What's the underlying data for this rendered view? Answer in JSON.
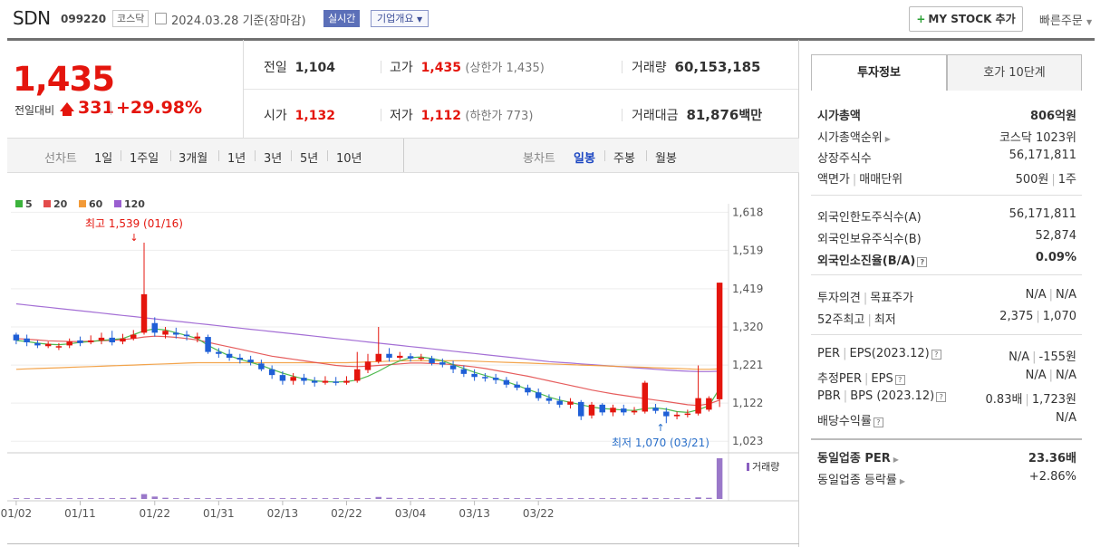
{
  "header": {
    "stock_name": "SDN",
    "stock_code": "099220",
    "market": "코스닥",
    "date": "2024.03.28",
    "basis": "기준(장마감)",
    "realtime_label": "실시간",
    "corp_overview_label": "기업개요",
    "my_stock_label": "MY STOCK 추가",
    "quick_order_label": "빠른주문"
  },
  "summary": {
    "price": "1,435",
    "change_label": "전일대비",
    "change_value": "331",
    "change_pct": "+29.98%",
    "prev_close_label": "전일",
    "prev_close": "1,104",
    "high_label": "고가",
    "high": "1,435",
    "upper_limit_label": "(상한가 1,435)",
    "volume_label": "거래량",
    "volume": "60,153,185",
    "open_label": "시가",
    "open": "1,132",
    "low_label": "저가",
    "low": "1,112",
    "lower_limit_label": "(하한가 773)",
    "trade_value_label": "거래대금",
    "trade_value": "81,876",
    "trade_value_unit": "백만"
  },
  "period_bar": {
    "line_chart_label": "선차트",
    "periods": [
      "1일",
      "1주일",
      "3개월",
      "1년",
      "3년",
      "5년",
      "10년"
    ],
    "candle_chart_label": "봉차트",
    "candle_types": [
      "일봉",
      "주봉",
      "월봉"
    ],
    "selected_candle": "일봉"
  },
  "legend": [
    {
      "label": "5",
      "color": "#3cb33c"
    },
    {
      "label": "20",
      "color": "#e34b4b"
    },
    {
      "label": "60",
      "color": "#f29a38"
    },
    {
      "label": "120",
      "color": "#9a5fd0"
    }
  ],
  "chart_annotations": {
    "high": "최고 1,539 (01/16)",
    "low": "최저 1,070 (03/21)",
    "volume_label": "거래량"
  },
  "chart_data": {
    "type": "candlestick",
    "y_ticks": [
      "1,618",
      "1,519",
      "1,419",
      "1,320",
      "1,221",
      "1,122",
      "1,023"
    ],
    "ylim": [
      1000,
      1640
    ],
    "x_tick_labels": [
      "01/02",
      "01/11",
      "01/22",
      "01/31",
      "02/13",
      "02/22",
      "03/04",
      "03/13",
      "03/22"
    ],
    "candles": [
      [
        1300,
        1285,
        1305,
        1275
      ],
      [
        1290,
        1280,
        1300,
        1270
      ],
      [
        1278,
        1272,
        1285,
        1265
      ],
      [
        1270,
        1276,
        1282,
        1265
      ],
      [
        1268,
        1270,
        1278,
        1260
      ],
      [
        1272,
        1282,
        1290,
        1265
      ],
      [
        1285,
        1278,
        1295,
        1270
      ],
      [
        1280,
        1285,
        1298,
        1275
      ],
      [
        1285,
        1292,
        1305,
        1275
      ],
      [
        1292,
        1280,
        1310,
        1272
      ],
      [
        1282,
        1290,
        1302,
        1275
      ],
      [
        1290,
        1300,
        1312,
        1285
      ],
      [
        1305,
        1405,
        1539,
        1300
      ],
      [
        1330,
        1305,
        1345,
        1295
      ],
      [
        1300,
        1310,
        1320,
        1290
      ],
      [
        1305,
        1300,
        1318,
        1290
      ],
      [
        1300,
        1296,
        1310,
        1285
      ],
      [
        1290,
        1295,
        1305,
        1280
      ],
      [
        1294,
        1255,
        1300,
        1250
      ],
      [
        1255,
        1250,
        1265,
        1240
      ],
      [
        1250,
        1240,
        1262,
        1232
      ],
      [
        1240,
        1235,
        1250,
        1225
      ],
      [
        1235,
        1228,
        1245,
        1220
      ],
      [
        1225,
        1210,
        1235,
        1205
      ],
      [
        1210,
        1195,
        1220,
        1185
      ],
      [
        1195,
        1180,
        1205,
        1170
      ],
      [
        1180,
        1190,
        1200,
        1170
      ],
      [
        1188,
        1180,
        1198,
        1170
      ],
      [
        1180,
        1175,
        1190,
        1165
      ],
      [
        1175,
        1180,
        1192,
        1170
      ],
      [
        1178,
        1175,
        1190,
        1168
      ],
      [
        1175,
        1180,
        1192,
        1170
      ],
      [
        1180,
        1210,
        1255,
        1175
      ],
      [
        1208,
        1230,
        1250,
        1200
      ],
      [
        1230,
        1250,
        1320,
        1225
      ],
      [
        1250,
        1240,
        1265,
        1230
      ],
      [
        1240,
        1245,
        1255,
        1235
      ],
      [
        1244,
        1238,
        1252,
        1230
      ],
      [
        1238,
        1240,
        1250,
        1232
      ],
      [
        1238,
        1226,
        1245,
        1220
      ],
      [
        1228,
        1222,
        1238,
        1215
      ],
      [
        1220,
        1210,
        1232,
        1200
      ],
      [
        1210,
        1198,
        1220,
        1190
      ],
      [
        1198,
        1190,
        1210,
        1180
      ],
      [
        1190,
        1188,
        1200,
        1178
      ],
      [
        1188,
        1182,
        1198,
        1172
      ],
      [
        1182,
        1170,
        1190,
        1162
      ],
      [
        1170,
        1162,
        1178,
        1155
      ],
      [
        1162,
        1150,
        1170,
        1142
      ],
      [
        1150,
        1135,
        1160,
        1128
      ],
      [
        1135,
        1128,
        1145,
        1120
      ],
      [
        1128,
        1118,
        1140,
        1110
      ],
      [
        1118,
        1126,
        1135,
        1108
      ],
      [
        1125,
        1088,
        1130,
        1078
      ],
      [
        1090,
        1118,
        1125,
        1082
      ],
      [
        1118,
        1098,
        1122,
        1090
      ],
      [
        1098,
        1110,
        1118,
        1088
      ],
      [
        1108,
        1098,
        1118,
        1090
      ],
      [
        1098,
        1102,
        1112,
        1092
      ],
      [
        1100,
        1175,
        1180,
        1095
      ],
      [
        1110,
        1102,
        1120,
        1095
      ],
      [
        1100,
        1088,
        1110,
        1070
      ],
      [
        1088,
        1092,
        1100,
        1080
      ],
      [
        1092,
        1095,
        1105,
        1085
      ],
      [
        1095,
        1135,
        1220,
        1090
      ],
      [
        1105,
        1135,
        1140,
        1100
      ],
      [
        1132,
        1435,
        1435,
        1112
      ]
    ],
    "ma": {
      "5": [
        1285,
        1282,
        1278,
        1275,
        1274,
        1276,
        1280,
        1282,
        1285,
        1287,
        1290,
        1300,
        1310,
        1315,
        1312,
        1305,
        1298,
        1290,
        1272,
        1258,
        1245,
        1236,
        1228,
        1220,
        1210,
        1200,
        1192,
        1185,
        1180,
        1178,
        1177,
        1178,
        1182,
        1192,
        1205,
        1220,
        1232,
        1240,
        1242,
        1238,
        1232,
        1222,
        1212,
        1202,
        1194,
        1186,
        1178,
        1168,
        1158,
        1148,
        1138,
        1130,
        1124,
        1118,
        1112,
        1108,
        1106,
        1104,
        1103,
        1108,
        1110,
        1106,
        1100,
        1098,
        1105,
        1115,
        1160
      ],
      "20": [
        1290,
        1288,
        1286,
        1284,
        1283,
        1282,
        1282,
        1283,
        1284,
        1285,
        1287,
        1290,
        1294,
        1296,
        1295,
        1293,
        1290,
        1286,
        1280,
        1274,
        1268,
        1262,
        1256,
        1250,
        1244,
        1240,
        1236,
        1232,
        1228,
        1224,
        1220,
        1218,
        1217,
        1218,
        1220,
        1222,
        1224,
        1226,
        1226,
        1225,
        1224,
        1222,
        1219,
        1216,
        1212,
        1207,
        1202,
        1197,
        1192,
        1186,
        1180,
        1174,
        1168,
        1162,
        1156,
        1151,
        1146,
        1142,
        1138,
        1134,
        1130,
        1126,
        1122,
        1118,
        1116,
        1120,
        1130
      ],
      "60": [
        1210,
        1211,
        1212,
        1213,
        1214,
        1215,
        1216,
        1217,
        1218,
        1219,
        1220,
        1221,
        1222,
        1223,
        1224,
        1225,
        1226,
        1227,
        1227,
        1227,
        1227,
        1227,
        1227,
        1227,
        1227,
        1227,
        1227,
        1227,
        1227,
        1227,
        1227,
        1227,
        1228,
        1229,
        1230,
        1231,
        1232,
        1232,
        1232,
        1232,
        1232,
        1232,
        1232,
        1231,
        1230,
        1229,
        1228,
        1227,
        1226,
        1225,
        1224,
        1223,
        1222,
        1221,
        1220,
        1219,
        1218,
        1217,
        1216,
        1215,
        1214,
        1213,
        1212,
        1211,
        1210,
        1210,
        1211
      ],
      "120": [
        1380,
        1377,
        1374,
        1371,
        1368,
        1365,
        1362,
        1359,
        1356,
        1353,
        1350,
        1347,
        1344,
        1341,
        1338,
        1335,
        1332,
        1329,
        1326,
        1323,
        1320,
        1317,
        1314,
        1311,
        1308,
        1305,
        1302,
        1299,
        1296,
        1293,
        1290,
        1287,
        1284,
        1281,
        1278,
        1275,
        1272,
        1269,
        1266,
        1263,
        1260,
        1257,
        1254,
        1251,
        1248,
        1245,
        1242,
        1239,
        1236,
        1233,
        1230,
        1228,
        1226,
        1224,
        1222,
        1220,
        1218,
        1216,
        1214,
        1212,
        1210,
        1208,
        1206,
        1205,
        1204,
        1204,
        1205
      ]
    },
    "volume_relative": [
      0.02,
      0.02,
      0.02,
      0.02,
      0.02,
      0.02,
      0.02,
      0.02,
      0.02,
      0.02,
      0.02,
      0.03,
      0.12,
      0.06,
      0.03,
      0.02,
      0.02,
      0.02,
      0.02,
      0.02,
      0.02,
      0.02,
      0.02,
      0.02,
      0.02,
      0.02,
      0.02,
      0.02,
      0.02,
      0.02,
      0.02,
      0.02,
      0.02,
      0.02,
      0.05,
      0.03,
      0.02,
      0.02,
      0.02,
      0.02,
      0.02,
      0.02,
      0.02,
      0.02,
      0.02,
      0.02,
      0.02,
      0.02,
      0.02,
      0.02,
      0.02,
      0.02,
      0.02,
      0.02,
      0.02,
      0.02,
      0.02,
      0.02,
      0.02,
      0.03,
      0.02,
      0.02,
      0.02,
      0.02,
      0.04,
      0.03,
      1.0
    ],
    "x_label_indices": [
      0,
      6,
      13,
      19,
      25,
      31,
      37,
      43,
      49
    ]
  },
  "invest_panel": {
    "tab_active": "투자정보",
    "tab_other": "호가 10단계",
    "market_cap_label": "시가총액",
    "market_cap": "806억원",
    "rank_label": "시가총액순위",
    "rank": "코스닥 1023위",
    "shares_label": "상장주식수",
    "shares": "56,171,811",
    "par_label": "액면가",
    "unit_label": "매매단위",
    "par": "500원",
    "unit": "1주",
    "foreign_limit_label": "외국인한도주식수(A)",
    "foreign_limit": "56,171,811",
    "foreign_hold_label": "외국인보유주식수(B)",
    "foreign_hold": "52,874",
    "foreign_ratio_label": "외국인소진율(B/A)",
    "foreign_ratio": "0.09%",
    "opinion_label": "투자의견",
    "target_label": "목표주가",
    "opinion": "N/A",
    "target": "N/A",
    "w52_label": "52주최고",
    "w52_low_label": "최저",
    "w52_high": "2,375",
    "w52_low": "1,070",
    "per_label": "PER",
    "eps_label": "EPS(2023.12)",
    "per": "N/A",
    "eps": "-155원",
    "est_per_label": "추정PER",
    "est_eps_label": "EPS",
    "est_per": "N/A",
    "est_eps": "N/A",
    "pbr_label": "PBR",
    "bps_label": "BPS (2023.12)",
    "pbr": "0.83배",
    "bps": "1,723원",
    "dividend_label": "배당수익률",
    "dividend": "N/A",
    "sector_per_label": "동일업종 PER",
    "sector_per": "23.36배",
    "sector_chg_label": "동일업종 등락률",
    "sector_chg": "+2.86%"
  }
}
